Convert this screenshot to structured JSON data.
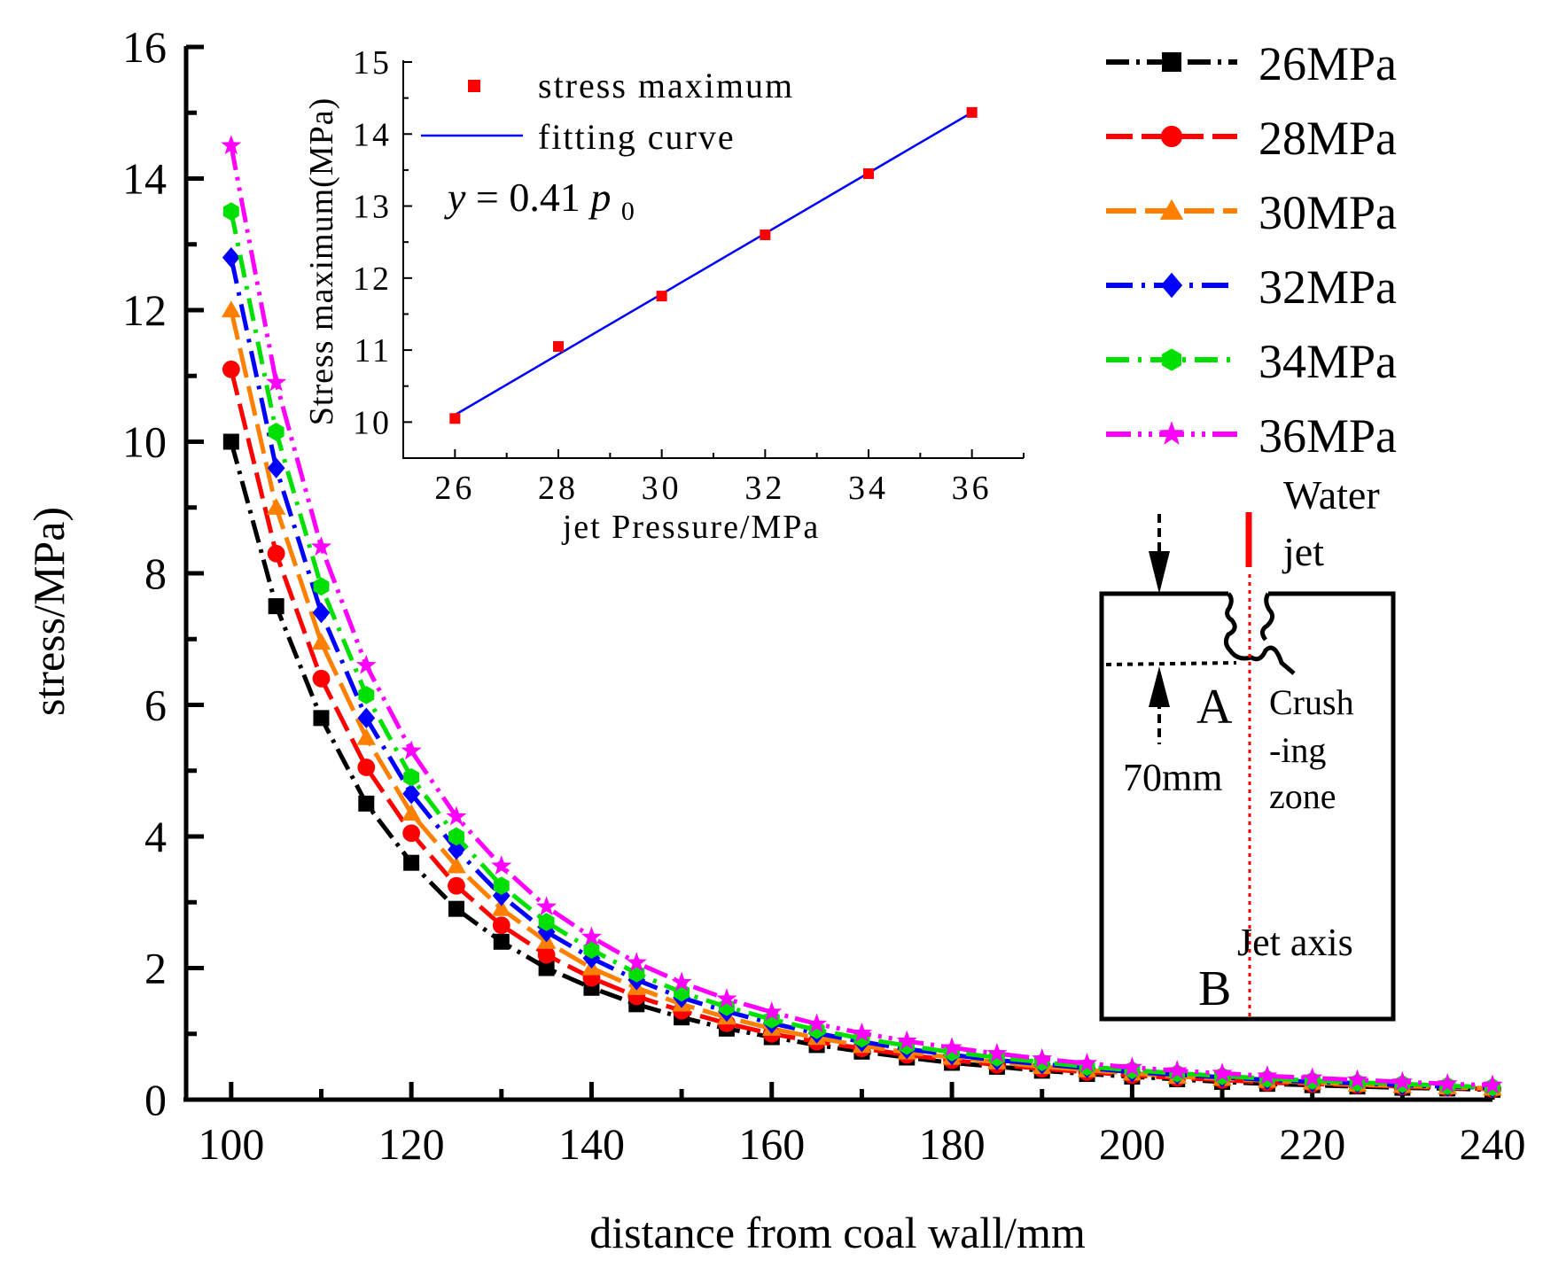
{
  "colors": {
    "26MPa": "#000000",
    "28MPa": "#ff0000",
    "30MPa": "#ff8000",
    "32MPa": "#0000ff",
    "34MPa": "#00e000",
    "36MPa": "#ff00ff",
    "fit": "#0000ff",
    "inset_points": "#ff0000",
    "axis": "#000000"
  },
  "chart_data": [
    {
      "type": "line",
      "xlabel": "distance from coal wall/mm",
      "ylabel": "stress/MPa)",
      "xlim": [
        95,
        240
      ],
      "ylim": [
        0,
        16
      ],
      "xticks": [
        100,
        120,
        140,
        160,
        180,
        200,
        220,
        240
      ],
      "yticks": [
        0,
        2,
        4,
        6,
        8,
        10,
        12,
        14,
        16
      ],
      "legend_position": "top-right",
      "x": [
        100,
        105,
        110,
        115,
        120,
        125,
        130,
        135,
        140,
        145,
        150,
        155,
        160,
        165,
        170,
        175,
        180,
        185,
        190,
        195,
        200,
        205,
        210,
        215,
        220,
        225,
        230,
        235,
        240
      ],
      "series": [
        {
          "name": "26MPa",
          "marker": "square",
          "values": [
            10.0,
            7.5,
            5.8,
            4.5,
            3.6,
            2.9,
            2.4,
            2.0,
            1.7,
            1.45,
            1.25,
            1.08,
            0.95,
            0.83,
            0.73,
            0.64,
            0.56,
            0.5,
            0.44,
            0.39,
            0.35,
            0.31,
            0.27,
            0.24,
            0.22,
            0.2,
            0.18,
            0.17,
            0.15
          ]
        },
        {
          "name": "28MPa",
          "marker": "circle",
          "values": [
            11.1,
            8.3,
            6.4,
            5.05,
            4.05,
            3.25,
            2.65,
            2.2,
            1.85,
            1.57,
            1.35,
            1.16,
            1.0,
            0.88,
            0.78,
            0.68,
            0.6,
            0.53,
            0.47,
            0.42,
            0.37,
            0.33,
            0.3,
            0.26,
            0.24,
            0.22,
            0.2,
            0.18,
            0.16
          ]
        },
        {
          "name": "30MPa",
          "marker": "triangle",
          "values": [
            12.0,
            9.0,
            6.95,
            5.5,
            4.35,
            3.55,
            2.9,
            2.4,
            2.0,
            1.7,
            1.45,
            1.25,
            1.08,
            0.94,
            0.82,
            0.72,
            0.64,
            0.57,
            0.5,
            0.45,
            0.4,
            0.35,
            0.32,
            0.29,
            0.26,
            0.23,
            0.21,
            0.19,
            0.17
          ]
        },
        {
          "name": "32MPa",
          "marker": "diamond",
          "values": [
            12.8,
            9.6,
            7.4,
            5.8,
            4.65,
            3.8,
            3.1,
            2.55,
            2.15,
            1.82,
            1.55,
            1.34,
            1.16,
            1.01,
            0.88,
            0.77,
            0.68,
            0.6,
            0.54,
            0.48,
            0.42,
            0.38,
            0.34,
            0.3,
            0.27,
            0.25,
            0.22,
            0.2,
            0.18
          ]
        },
        {
          "name": "34MPa",
          "marker": "hexagon",
          "values": [
            13.5,
            10.15,
            7.8,
            6.15,
            4.9,
            4.0,
            3.25,
            2.7,
            2.28,
            1.92,
            1.63,
            1.41,
            1.22,
            1.06,
            0.93,
            0.82,
            0.72,
            0.64,
            0.57,
            0.5,
            0.45,
            0.4,
            0.36,
            0.32,
            0.29,
            0.26,
            0.24,
            0.21,
            0.19
          ]
        },
        {
          "name": "36MPa",
          "marker": "star",
          "values": [
            14.5,
            10.9,
            8.4,
            6.6,
            5.3,
            4.3,
            3.55,
            2.93,
            2.47,
            2.08,
            1.78,
            1.53,
            1.33,
            1.15,
            1.01,
            0.89,
            0.79,
            0.7,
            0.62,
            0.55,
            0.49,
            0.44,
            0.4,
            0.36,
            0.33,
            0.3,
            0.27,
            0.24,
            0.22
          ]
        }
      ]
    },
    {
      "type": "scatter",
      "xlabel": "jet Pressure/MPa",
      "ylabel": "Stress maximum(MPa)",
      "xlim": [
        25,
        37
      ],
      "ylim": [
        9.5,
        15
      ],
      "xticks": [
        26,
        28,
        30,
        32,
        34,
        36
      ],
      "yticks": [
        10,
        11,
        12,
        13,
        14,
        15
      ],
      "legend_position": "top-left",
      "series": [
        {
          "name": "stress maximum",
          "marker": "square",
          "x": [
            26,
            28,
            30,
            32,
            34,
            36
          ],
          "y": [
            10.05,
            11.05,
            11.75,
            12.6,
            13.45,
            14.3
          ]
        },
        {
          "name": "fitting curve",
          "type": "line",
          "x": [
            26,
            36
          ],
          "y": [
            10.1,
            14.3
          ]
        }
      ],
      "annotation": {
        "y_text": "y",
        "eq_text": "= 0.41",
        "p_text": "p",
        "sub_text": "0"
      }
    }
  ],
  "diagram": {
    "water_jet_line1": "Water",
    "water_jet_line2": "jet",
    "point_a": "A",
    "point_b": "B",
    "crush_line1": "Crush",
    "crush_line2": "-ing",
    "crush_line3": "zone",
    "depth_label": "70mm",
    "axis_label": "Jet axis"
  }
}
